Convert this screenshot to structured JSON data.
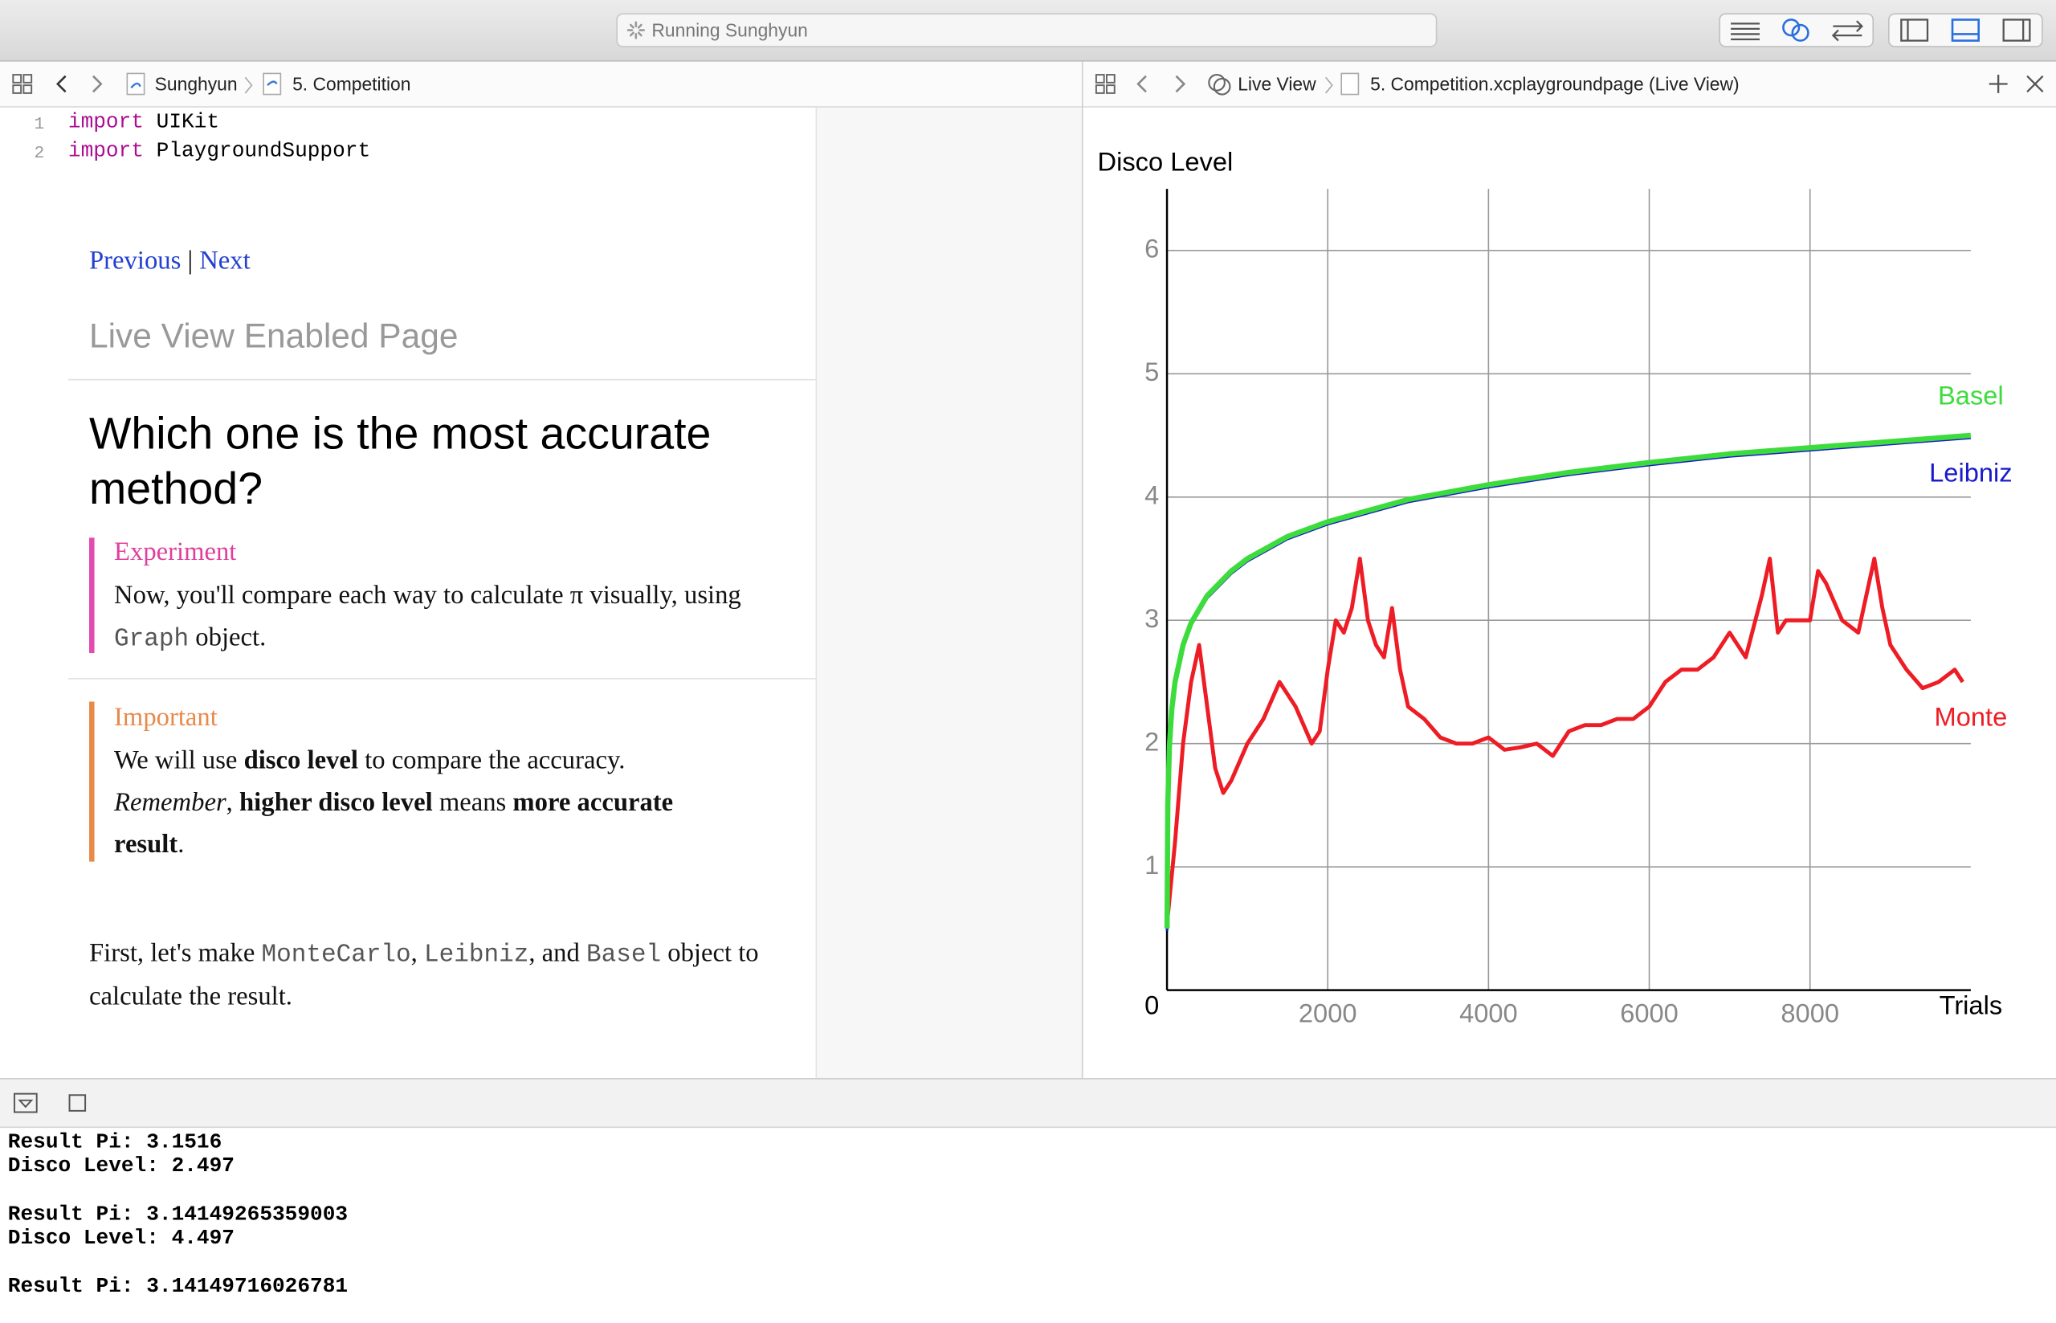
{
  "toolbar": {
    "status": "Running Sunghyun"
  },
  "editor": {
    "breadcrumb": [
      "Sunghyun",
      "5. Competition"
    ],
    "code": [
      {
        "line": 1,
        "keyword": "import",
        "text": "UIKit"
      },
      {
        "line": 2,
        "keyword": "import",
        "text": "PlaygroundSupport"
      }
    ]
  },
  "markdown": {
    "nav": {
      "previous": "Previous",
      "separator": "|",
      "next": "Next"
    },
    "page_title": "Live View Enabled Page",
    "heading": "Which one is the most accurate method?",
    "experiment": {
      "label": "Experiment",
      "runs": [
        {
          "t": "Now, you'll compare each way to calculate π visually, using "
        },
        {
          "t": "Graph",
          "s": "code"
        },
        {
          "t": " object."
        }
      ]
    },
    "important": {
      "label": "Important",
      "runs": [
        {
          "t": "We will use "
        },
        {
          "t": "disco level",
          "s": "bold"
        },
        {
          "t": " to compare the accuracy. "
        },
        {
          "t": "Remember",
          "s": "italic"
        },
        {
          "t": ", "
        },
        {
          "t": "higher disco level",
          "s": "bold"
        },
        {
          "t": " means "
        },
        {
          "t": "more accurate result",
          "s": "bold"
        },
        {
          "t": "."
        }
      ]
    },
    "paragraph": {
      "runs": [
        {
          "t": "First, let's make "
        },
        {
          "t": "MonteCarlo",
          "s": "code"
        },
        {
          "t": ", "
        },
        {
          "t": "Leibniz",
          "s": "code"
        },
        {
          "t": ", and "
        },
        {
          "t": "Basel",
          "s": "code"
        },
        {
          "t": " object to calculate the result."
        }
      ]
    }
  },
  "live_view": {
    "breadcrumb": [
      "Live View",
      "5. Competition.xcplaygroundpage (Live View)"
    ]
  },
  "chart_data": {
    "type": "line",
    "y_label": "Disco Level",
    "x_label": "Trials",
    "xlim": [
      0,
      10000
    ],
    "ylim": [
      0,
      6.5
    ],
    "xticks": [
      2000,
      4000,
      6000,
      8000
    ],
    "yticks": [
      0,
      1,
      2,
      3,
      4,
      5,
      6
    ],
    "grid": true,
    "series": [
      {
        "name": "Basel",
        "color": "#3ddc3d",
        "x": [
          1,
          10,
          30,
          60,
          100,
          200,
          300,
          500,
          800,
          1000,
          1500,
          2000,
          3000,
          4000,
          5000,
          6000,
          7000,
          8000,
          9000,
          10000
        ],
        "values": [
          0.5,
          1.5,
          1.98,
          2.28,
          2.5,
          2.8,
          2.98,
          3.2,
          3.4,
          3.5,
          3.68,
          3.8,
          3.98,
          4.1,
          4.2,
          4.28,
          4.35,
          4.4,
          4.45,
          4.5
        ]
      },
      {
        "name": "Leibniz",
        "color": "#1a1acc",
        "x": [
          1,
          10,
          30,
          60,
          100,
          200,
          300,
          500,
          800,
          1000,
          1500,
          2000,
          3000,
          4000,
          5000,
          6000,
          7000,
          8000,
          9000,
          10000
        ],
        "values": [
          0.48,
          1.48,
          1.96,
          2.26,
          2.48,
          2.78,
          2.96,
          3.18,
          3.38,
          3.48,
          3.66,
          3.78,
          3.96,
          4.08,
          4.18,
          4.26,
          4.33,
          4.38,
          4.43,
          4.48
        ]
      },
      {
        "name": "Monte",
        "color": "#ee1c24",
        "x": [
          10,
          100,
          200,
          300,
          400,
          500,
          600,
          700,
          800,
          1000,
          1200,
          1400,
          1500,
          1600,
          1800,
          1900,
          2000,
          2100,
          2200,
          2300,
          2400,
          2500,
          2600,
          2700,
          2800,
          2900,
          3000,
          3200,
          3400,
          3600,
          3800,
          4000,
          4200,
          4400,
          4600,
          4800,
          5000,
          5200,
          5400,
          5600,
          5800,
          6000,
          6200,
          6400,
          6600,
          6800,
          7000,
          7200,
          7400,
          7500,
          7600,
          7700,
          7800,
          8000,
          8100,
          8200,
          8400,
          8600,
          8800,
          8900,
          9000,
          9200,
          9400,
          9600,
          9800,
          9900
        ],
        "values": [
          0.6,
          1.2,
          2.0,
          2.5,
          2.8,
          2.3,
          1.8,
          1.6,
          1.7,
          2.0,
          2.2,
          2.5,
          2.4,
          2.3,
          2.0,
          2.1,
          2.6,
          3.0,
          2.9,
          3.1,
          3.5,
          3.0,
          2.8,
          2.7,
          3.1,
          2.6,
          2.3,
          2.2,
          2.05,
          2.0,
          2.0,
          2.05,
          1.95,
          1.97,
          2.0,
          1.9,
          2.1,
          2.15,
          2.15,
          2.2,
          2.2,
          2.3,
          2.5,
          2.6,
          2.6,
          2.7,
          2.9,
          2.7,
          3.2,
          3.5,
          2.9,
          3.0,
          3.0,
          3.0,
          3.4,
          3.3,
          3.0,
          2.9,
          3.5,
          3.1,
          2.8,
          2.6,
          2.45,
          2.5,
          2.6,
          2.5
        ]
      }
    ]
  },
  "console": {
    "groups": [
      [
        "Result Pi: 3.1516",
        "Disco Level: 2.497"
      ],
      [
        "Result Pi: 3.14149265359003",
        "Disco Level: 4.497"
      ],
      [
        "Result Pi: 3.14149716026781"
      ]
    ]
  }
}
